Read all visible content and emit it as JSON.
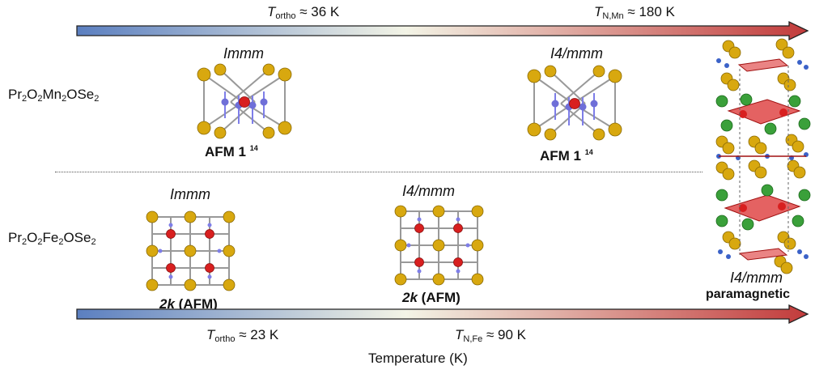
{
  "top_arrow": {
    "t_ortho": {
      "symbol": "T",
      "sub": "ortho",
      "value": "≈ 36 K"
    },
    "t_n": {
      "symbol": "T",
      "sub": "N,Mn",
      "value": "≈ 180 K"
    }
  },
  "bottom_arrow": {
    "t_ortho": {
      "symbol": "T",
      "sub": "ortho",
      "value": "≈ 23 K"
    },
    "t_n": {
      "symbol": "T",
      "sub": "N,Fe",
      "value": "≈ 90 K"
    }
  },
  "axis_label": "Temperature (K)",
  "mn_compound": {
    "p1": "Pr",
    "s1": "2",
    "p2": "O",
    "s2": "2",
    "p3": "Mn",
    "s3": "2",
    "p4": "OSe",
    "s4": "2"
  },
  "fe_compound": {
    "p1": "Pr",
    "s1": "2",
    "p2": "O",
    "s2": "2",
    "p3": "Fe",
    "s3": "2",
    "p4": "OSe",
    "s4": "2"
  },
  "mn_low": {
    "space_group": "Immm",
    "magnetic": "AFM 1",
    "ref": "14"
  },
  "mn_high": {
    "space_group": "I4/mmm",
    "magnetic": "AFM 1",
    "ref": "14"
  },
  "fe_low": {
    "space_group": "Immm",
    "magnetic_k": "2k",
    "magnetic_rest": "(AFM)"
  },
  "fe_high": {
    "space_group": "I4/mmm",
    "magnetic_k": "2k",
    "magnetic_rest": "(AFM)"
  },
  "paramagnetic": {
    "space_group": "I4/mmm",
    "label": "paramagnetic"
  },
  "colors": {
    "arrow_start": "#5b7fc0",
    "arrow_mid": "#f3f4e6",
    "arrow_end": "#c23b3b",
    "se_atom": "#d8a80f",
    "o_atom": "#d81f1f",
    "metal_atom": "#6f6fd8",
    "pr_atom": "#3aa03a",
    "spin_arrow": "#7e7ee8"
  }
}
